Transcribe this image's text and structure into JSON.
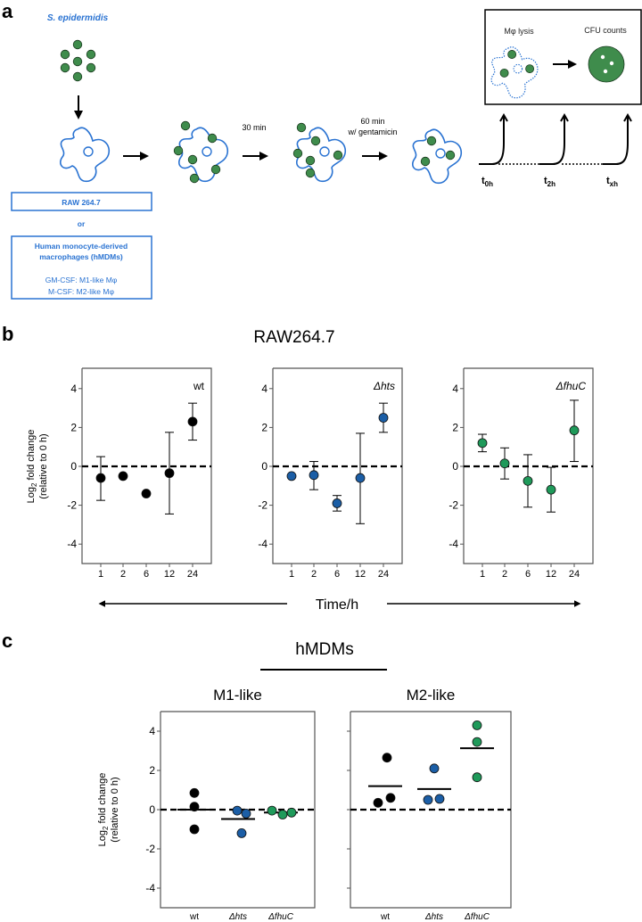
{
  "panel_labels": {
    "a": "a",
    "b": "b",
    "c": "c"
  },
  "panel_a": {
    "organism": "S. epidermidis",
    "cell_line_1": "RAW 264.7",
    "or": "or",
    "cell_line_2_line1": "Human monocyte-derived",
    "cell_line_2_line2": "macrophages (hMDMs)",
    "gm_csf": "GM-CSF: M1-like Mφ",
    "m_csf": "M-CSF: M2-like Mφ",
    "step_30": "30 min",
    "step_60_line1": "60 min",
    "step_60_line2": "w/ gentamicin",
    "lysis": "Mφ lysis",
    "cfu": "CFU counts",
    "t0": {
      "main": "t",
      "sub": "0h"
    },
    "t2": {
      "main": "t",
      "sub": "2h"
    },
    "tx": {
      "main": "t",
      "sub": "xh"
    },
    "colors": {
      "bacteria": "#3f8c4c",
      "macrophage": "#2a73d2"
    }
  },
  "panel_b": {
    "title": "RAW264.7",
    "time_label": "Time/h"
  },
  "panel_c": {
    "title": "hMDMs"
  },
  "chart_data": [
    {
      "type": "scatter",
      "title": "wt",
      "panel": "b",
      "color": "#000000",
      "ylabel": "Log2 fold change (relative to 0 h)",
      "ylabel_main": "Log",
      "ylabel_sub": "2",
      "ylabel_rest": " fold change",
      "ylabel_line2": "(relative to 0 h)",
      "categories": [
        "1",
        "2",
        "6",
        "12",
        "24"
      ],
      "xlabel": "Time/h",
      "values": [
        -0.6,
        -0.5,
        -1.4,
        -0.35,
        2.3
      ],
      "err_low": [
        -1.75,
        null,
        null,
        -2.45,
        1.35
      ],
      "err_high": [
        0.5,
        null,
        null,
        1.75,
        3.25
      ],
      "ylim": [
        -5,
        5
      ],
      "yticks": [
        "4",
        "2",
        "0",
        "-2",
        "-4"
      ],
      "reference_line": 0
    },
    {
      "type": "scatter",
      "title": "Δhts",
      "panel": "b",
      "color": "#1b5ea6",
      "categories": [
        "1",
        "2",
        "6",
        "12",
        "24"
      ],
      "values": [
        -0.5,
        -0.45,
        -1.9,
        -0.6,
        2.5
      ],
      "err_low": [
        null,
        -1.2,
        -2.3,
        -2.95,
        1.75
      ],
      "err_high": [
        null,
        0.25,
        -1.5,
        1.7,
        3.25
      ],
      "ylim": [
        -5,
        5
      ],
      "yticks": [
        "4",
        "2",
        "0",
        "-2",
        "-4"
      ],
      "reference_line": 0
    },
    {
      "type": "scatter",
      "title": "ΔfhuC",
      "panel": "b",
      "color": "#1f9a5a",
      "categories": [
        "1",
        "2",
        "6",
        "12",
        "24"
      ],
      "values": [
        1.2,
        0.15,
        -0.75,
        -1.2,
        1.85
      ],
      "err_low": [
        0.75,
        -0.65,
        -2.1,
        -2.35,
        0.25
      ],
      "err_high": [
        1.65,
        0.95,
        0.6,
        -0.05,
        3.4
      ],
      "ylim": [
        -5,
        5
      ],
      "yticks": [
        "4",
        "2",
        "0",
        "-2",
        "-4"
      ],
      "reference_line": 0
    },
    {
      "type": "scatter",
      "title": "M1-like",
      "panel": "c",
      "ylabel_main": "Log",
      "ylabel_sub": "2",
      "ylabel_rest": " fold change",
      "ylabel_line2": "(relative to 0 h)",
      "categories": [
        "wt",
        "Δhts",
        "ΔfhuC"
      ],
      "series": [
        {
          "name": "wt",
          "color": "#000000",
          "points": [
            0.85,
            0.15,
            -1.0
          ],
          "mean": 0.0
        },
        {
          "name": "Δhts",
          "color": "#1b5ea6",
          "points": [
            -0.05,
            -0.2,
            -1.2
          ],
          "mean": -0.48
        },
        {
          "name": "ΔfhuC",
          "color": "#1f9a5a",
          "points": [
            -0.05,
            -0.25,
            -0.15
          ],
          "mean": -0.15
        }
      ],
      "ylim": [
        -5,
        5
      ],
      "yticks": [
        "4",
        "2",
        "0",
        "-2",
        "-4"
      ],
      "reference_line": 0
    },
    {
      "type": "scatter",
      "title": "M2-like",
      "panel": "c",
      "categories": [
        "wt",
        "Δhts",
        "ΔfhuC"
      ],
      "series": [
        {
          "name": "wt",
          "color": "#000000",
          "points": [
            2.65,
            0.35,
            0.6
          ],
          "mean": 1.2
        },
        {
          "name": "Δhts",
          "color": "#1b5ea6",
          "points": [
            2.1,
            0.5,
            0.55
          ],
          "mean": 1.05
        },
        {
          "name": "ΔfhuC",
          "color": "#1f9a5a",
          "points": [
            4.3,
            3.45,
            1.65
          ],
          "mean": 3.13
        }
      ],
      "ylim": [
        -5,
        5
      ],
      "reference_line": 0
    }
  ]
}
